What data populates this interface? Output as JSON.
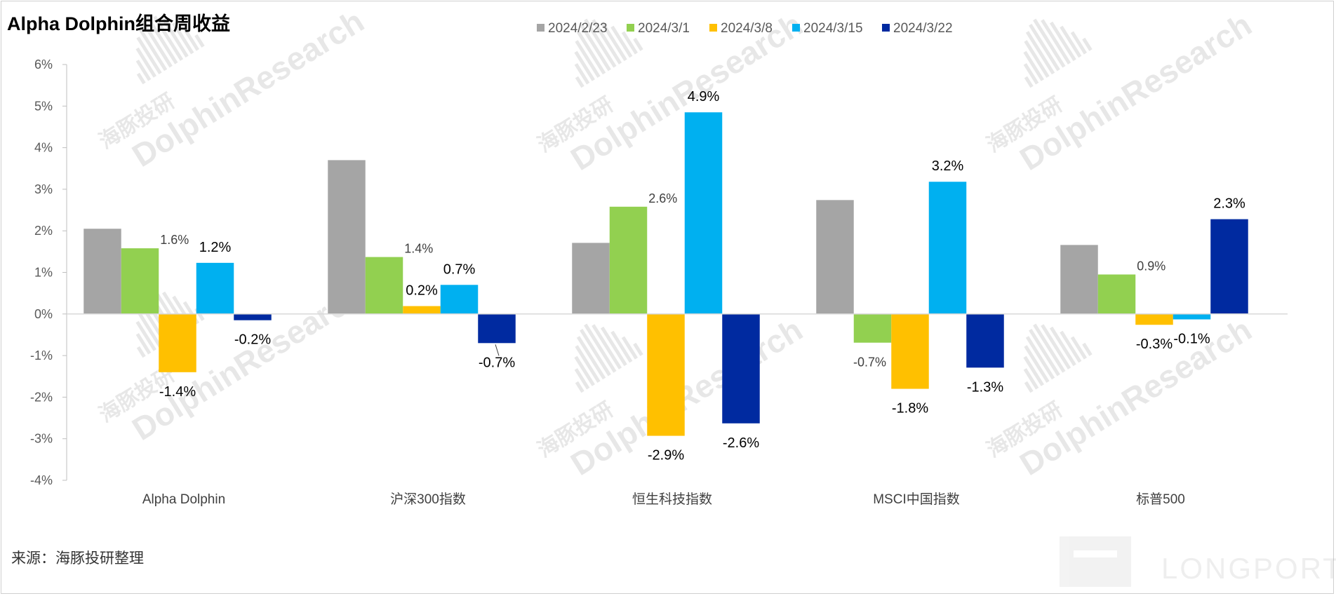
{
  "title": "Alpha Dolphin组合周收益",
  "source": "来源：海豚投研整理",
  "watermark": {
    "cn": "海豚投研",
    "en": "DolphinResearch",
    "brand": "LONGPORT"
  },
  "chart_data": {
    "type": "bar",
    "title": "Alpha Dolphin组合周收益",
    "categories": [
      "Alpha Dolphin",
      "沪深300指数",
      "恒生科技指数",
      "MSCI中国指数",
      "标普500"
    ],
    "series": [
      {
        "name": "2024/2/23",
        "color": "#A5A5A5",
        "values": [
          2.05,
          3.7,
          1.71,
          2.74,
          1.66
        ],
        "labels": [
          null,
          null,
          null,
          null,
          null
        ]
      },
      {
        "name": "2024/3/1",
        "color": "#92D050",
        "values": [
          1.58,
          1.37,
          2.58,
          -0.69,
          0.95
        ],
        "labels": [
          "1.6%",
          "1.4%",
          "2.6%",
          "-0.7%",
          "0.9%"
        ]
      },
      {
        "name": "2024/3/8",
        "color": "#FFC000",
        "values": [
          -1.4,
          0.19,
          -2.93,
          -1.8,
          -0.26
        ],
        "labels": [
          "-1.4%",
          "0.2%",
          "-2.9%",
          "-1.8%",
          "-0.3%"
        ]
      },
      {
        "name": "2024/3/15",
        "color": "#00B0F0",
        "values": [
          1.23,
          0.7,
          4.85,
          3.18,
          -0.13
        ],
        "labels": [
          "1.2%",
          "0.7%",
          "4.9%",
          "3.2%",
          "-0.1%"
        ]
      },
      {
        "name": "2024/3/22",
        "color": "#002AA0",
        "values": [
          -0.15,
          -0.7,
          -2.63,
          -1.29,
          2.28
        ],
        "labels": [
          "-0.2%",
          "-0.7%",
          "-2.6%",
          "-1.3%",
          "2.3%"
        ]
      }
    ],
    "ylim": [
      -4,
      6
    ],
    "yticks": [
      6,
      5,
      4,
      3,
      2,
      1,
      0,
      -1,
      -2,
      -3,
      -4
    ],
    "ytick_labels": [
      "6%",
      "5%",
      "4%",
      "3%",
      "2%",
      "1%",
      "0%",
      "-1%",
      "-2%",
      "-3%",
      "-4%"
    ],
    "legend_position": "top-center",
    "grid": false
  }
}
